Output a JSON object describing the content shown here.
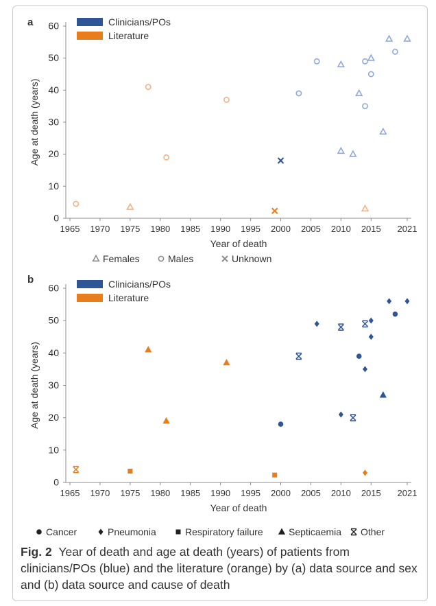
{
  "colors": {
    "blue": "#2f5597",
    "blue_light": "#8ea9db",
    "orange": "#e87d1e",
    "orange_light": "#f4b183",
    "axis": "#8c8c8c",
    "text": "#333333"
  },
  "chart_data": [
    {
      "type": "scatter",
      "panel_label": "a",
      "xlabel": "Year of death",
      "ylabel": "Age at death (years)",
      "xlim": [
        1965,
        2021
      ],
      "ylim": [
        0,
        60
      ],
      "xticks": [
        1965,
        1970,
        1975,
        1980,
        1985,
        1990,
        1995,
        2000,
        2005,
        2010,
        2015,
        2021
      ],
      "yticks": [
        0,
        10,
        20,
        30,
        40,
        50,
        60
      ],
      "legend_source": [
        "Clinicians/POs",
        "Literature"
      ],
      "legend_markers": [
        "Females",
        "Males",
        "Unknown"
      ],
      "points": [
        {
          "x": 1966,
          "y": 4.5,
          "src": "Literature",
          "m": "Males"
        },
        {
          "x": 1975,
          "y": 3.5,
          "src": "Literature",
          "m": "Females"
        },
        {
          "x": 1978,
          "y": 41,
          "src": "Literature",
          "m": "Males"
        },
        {
          "x": 1981,
          "y": 19,
          "src": "Literature",
          "m": "Males"
        },
        {
          "x": 1991,
          "y": 37,
          "src": "Literature",
          "m": "Males"
        },
        {
          "x": 1999,
          "y": 2.3,
          "src": "Literature",
          "m": "Unknown"
        },
        {
          "x": 2014,
          "y": 3,
          "src": "Literature",
          "m": "Females"
        },
        {
          "x": 2000,
          "y": 18,
          "src": "Clinicians/POs",
          "m": "Unknown"
        },
        {
          "x": 2003,
          "y": 39,
          "src": "Clinicians/POs",
          "m": "Males"
        },
        {
          "x": 2006,
          "y": 49,
          "src": "Clinicians/POs",
          "m": "Males"
        },
        {
          "x": 2010,
          "y": 48,
          "src": "Clinicians/POs",
          "m": "Females"
        },
        {
          "x": 2010,
          "y": 21,
          "src": "Clinicians/POs",
          "m": "Females"
        },
        {
          "x": 2012,
          "y": 20,
          "src": "Clinicians/POs",
          "m": "Females"
        },
        {
          "x": 2013,
          "y": 39,
          "src": "Clinicians/POs",
          "m": "Females"
        },
        {
          "x": 2014,
          "y": 49,
          "src": "Clinicians/POs",
          "m": "Males"
        },
        {
          "x": 2014,
          "y": 35,
          "src": "Clinicians/POs",
          "m": "Males"
        },
        {
          "x": 2015,
          "y": 50,
          "src": "Clinicians/POs",
          "m": "Females"
        },
        {
          "x": 2015,
          "y": 45,
          "src": "Clinicians/POs",
          "m": "Males"
        },
        {
          "x": 2017,
          "y": 27,
          "src": "Clinicians/POs",
          "m": "Females"
        },
        {
          "x": 2018,
          "y": 56,
          "src": "Clinicians/POs",
          "m": "Females"
        },
        {
          "x": 2019,
          "y": 52,
          "src": "Clinicians/POs",
          "m": "Males"
        },
        {
          "x": 2021,
          "y": 56,
          "src": "Clinicians/POs",
          "m": "Females"
        }
      ]
    },
    {
      "type": "scatter",
      "panel_label": "b",
      "xlabel": "Year of death",
      "ylabel": "Age at death (years)",
      "xlim": [
        1965,
        2021
      ],
      "ylim": [
        0,
        60
      ],
      "xticks": [
        1965,
        1970,
        1975,
        1980,
        1985,
        1990,
        1995,
        2000,
        2005,
        2010,
        2015,
        2021
      ],
      "yticks": [
        0,
        10,
        20,
        30,
        40,
        50,
        60
      ],
      "legend_source": [
        "Clinicians/POs",
        "Literature"
      ],
      "legend_markers": [
        "Cancer",
        "Pneumonia",
        "Respiratory failure",
        "Septicaemia",
        "Other"
      ],
      "points": [
        {
          "x": 1966,
          "y": 4,
          "src": "Literature",
          "m": "Other"
        },
        {
          "x": 1975,
          "y": 3.5,
          "src": "Literature",
          "m": "Respiratory failure"
        },
        {
          "x": 1978,
          "y": 41,
          "src": "Literature",
          "m": "Septicaemia"
        },
        {
          "x": 1981,
          "y": 19,
          "src": "Literature",
          "m": "Septicaemia"
        },
        {
          "x": 1991,
          "y": 37,
          "src": "Literature",
          "m": "Septicaemia"
        },
        {
          "x": 1999,
          "y": 2.3,
          "src": "Literature",
          "m": "Respiratory failure"
        },
        {
          "x": 2014,
          "y": 3,
          "src": "Literature",
          "m": "Pneumonia"
        },
        {
          "x": 2000,
          "y": 18,
          "src": "Clinicians/POs",
          "m": "Cancer"
        },
        {
          "x": 2003,
          "y": 39,
          "src": "Clinicians/POs",
          "m": "Other"
        },
        {
          "x": 2006,
          "y": 49,
          "src": "Clinicians/POs",
          "m": "Pneumonia"
        },
        {
          "x": 2010,
          "y": 48,
          "src": "Clinicians/POs",
          "m": "Other"
        },
        {
          "x": 2010,
          "y": 21,
          "src": "Clinicians/POs",
          "m": "Pneumonia"
        },
        {
          "x": 2012,
          "y": 20,
          "src": "Clinicians/POs",
          "m": "Other"
        },
        {
          "x": 2013,
          "y": 39,
          "src": "Clinicians/POs",
          "m": "Cancer"
        },
        {
          "x": 2014,
          "y": 49,
          "src": "Clinicians/POs",
          "m": "Other"
        },
        {
          "x": 2014,
          "y": 35,
          "src": "Clinicians/POs",
          "m": "Pneumonia"
        },
        {
          "x": 2015,
          "y": 50,
          "src": "Clinicians/POs",
          "m": "Pneumonia"
        },
        {
          "x": 2015,
          "y": 45,
          "src": "Clinicians/POs",
          "m": "Pneumonia"
        },
        {
          "x": 2017,
          "y": 27,
          "src": "Clinicians/POs",
          "m": "Septicaemia"
        },
        {
          "x": 2018,
          "y": 56,
          "src": "Clinicians/POs",
          "m": "Pneumonia"
        },
        {
          "x": 2019,
          "y": 52,
          "src": "Clinicians/POs",
          "m": "Cancer"
        },
        {
          "x": 2021,
          "y": 56,
          "src": "Clinicians/POs",
          "m": "Pneumonia"
        }
      ]
    }
  ],
  "caption": {
    "label": "Fig. 2",
    "text": "Year of death and age at death (years) of patients from clinicians/POs (blue) and the literature (orange) by (a) data source and sex and (b) data source and cause of death"
  }
}
